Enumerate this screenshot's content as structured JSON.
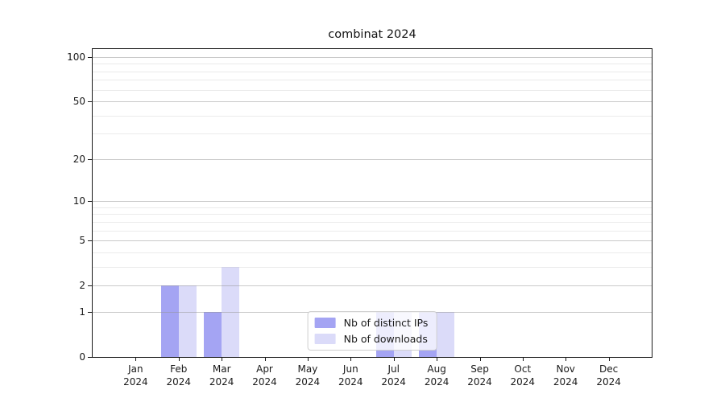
{
  "chart_data": {
    "type": "bar",
    "title": "combinat 2024",
    "categories": [
      "Jan",
      "Feb",
      "Mar",
      "Apr",
      "May",
      "Jun",
      "Jul",
      "Aug",
      "Sep",
      "Oct",
      "Nov",
      "Dec"
    ],
    "year_label": "2024",
    "series": [
      {
        "name": "Nb of distinct IPs",
        "color": "#a4a4f3",
        "values": [
          0,
          2,
          1,
          0,
          0,
          0,
          1,
          1,
          0,
          0,
          0,
          0
        ]
      },
      {
        "name": "Nb of downloads",
        "color": "#dbdbf9",
        "values": [
          0,
          2,
          3,
          0,
          0,
          0,
          1,
          1,
          0,
          0,
          0,
          0
        ]
      }
    ],
    "y_axis": {
      "scale": "log1p",
      "ticks": [
        0,
        1,
        2,
        5,
        10,
        20,
        50,
        100
      ],
      "minor_ticks": [
        3,
        4,
        6,
        7,
        8,
        9,
        30,
        40,
        60,
        70,
        80,
        90
      ],
      "max": 113
    },
    "legend_position": "lower center",
    "grid": "horizontal"
  },
  "colors": {
    "background": "#ffffff",
    "spine": "#1a1a1a",
    "grid_major": "#c9c9c9",
    "grid_minor": "#ebebeb",
    "text": "#111111"
  }
}
